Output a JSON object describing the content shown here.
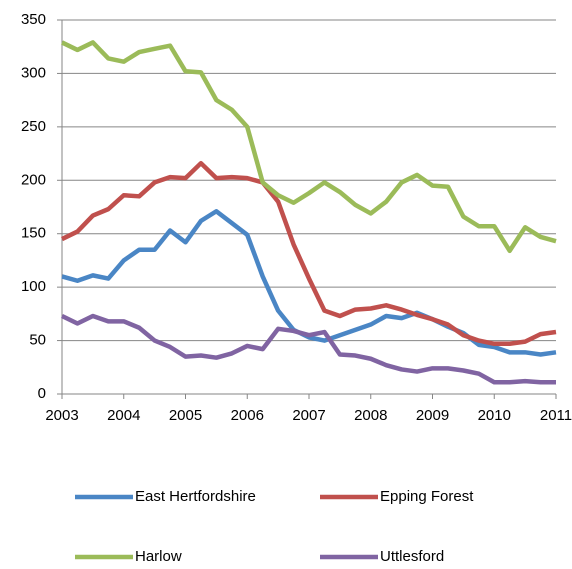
{
  "chart_data": {
    "type": "line",
    "x": [
      2003,
      2003.25,
      2003.5,
      2003.75,
      2004,
      2004.25,
      2004.5,
      2004.75,
      2005,
      2005.25,
      2005.5,
      2005.75,
      2006,
      2006.25,
      2006.5,
      2006.75,
      2007,
      2007.25,
      2007.5,
      2007.75,
      2008,
      2008.25,
      2008.5,
      2008.75,
      2009,
      2009.25,
      2009.5,
      2009.75,
      2010,
      2010.25,
      2010.5,
      2010.75,
      2011
    ],
    "series": [
      {
        "name": "East Hertfordshire",
        "color": "#4a86c5",
        "values": [
          110,
          106,
          111,
          108,
          125,
          135,
          135,
          153,
          142,
          162,
          171,
          160,
          149,
          110,
          78,
          60,
          53,
          50,
          55,
          60,
          65,
          73,
          71,
          76,
          70,
          63,
          57,
          46,
          44,
          39,
          39,
          37,
          39
        ]
      },
      {
        "name": "Epping Forest",
        "color": "#c0504d",
        "values": [
          145,
          152,
          167,
          173,
          186,
          185,
          198,
          203,
          202,
          216,
          202,
          203,
          202,
          198,
          180,
          140,
          108,
          78,
          73,
          79,
          80,
          83,
          79,
          74,
          70,
          65,
          55,
          50,
          47,
          47,
          49,
          56,
          58
        ]
      },
      {
        "name": "Harlow",
        "color": "#9bbb59",
        "values": [
          329,
          322,
          329,
          314,
          311,
          320,
          323,
          326,
          302,
          301,
          275,
          266,
          250,
          198,
          186,
          179,
          188,
          198,
          189,
          177,
          169,
          180,
          198,
          205,
          195,
          194,
          166,
          157,
          157,
          134,
          156,
          147,
          143
        ]
      },
      {
        "name": "Uttlesford",
        "color": "#8064a2",
        "values": [
          73,
          66,
          73,
          68,
          68,
          62,
          50,
          44,
          35,
          36,
          34,
          38,
          45,
          42,
          61,
          59,
          55,
          58,
          37,
          36,
          33,
          27,
          23,
          21,
          24,
          24,
          22,
          19,
          11,
          11,
          12,
          11,
          11
        ]
      }
    ],
    "xlim": [
      2003,
      2011
    ],
    "xticks": [
      2003,
      2004,
      2005,
      2006,
      2007,
      2008,
      2009,
      2010,
      2011
    ],
    "ylim": [
      0,
      350
    ],
    "yticks": [
      0,
      50,
      100,
      150,
      200,
      250,
      300,
      350
    ],
    "grid": true
  }
}
